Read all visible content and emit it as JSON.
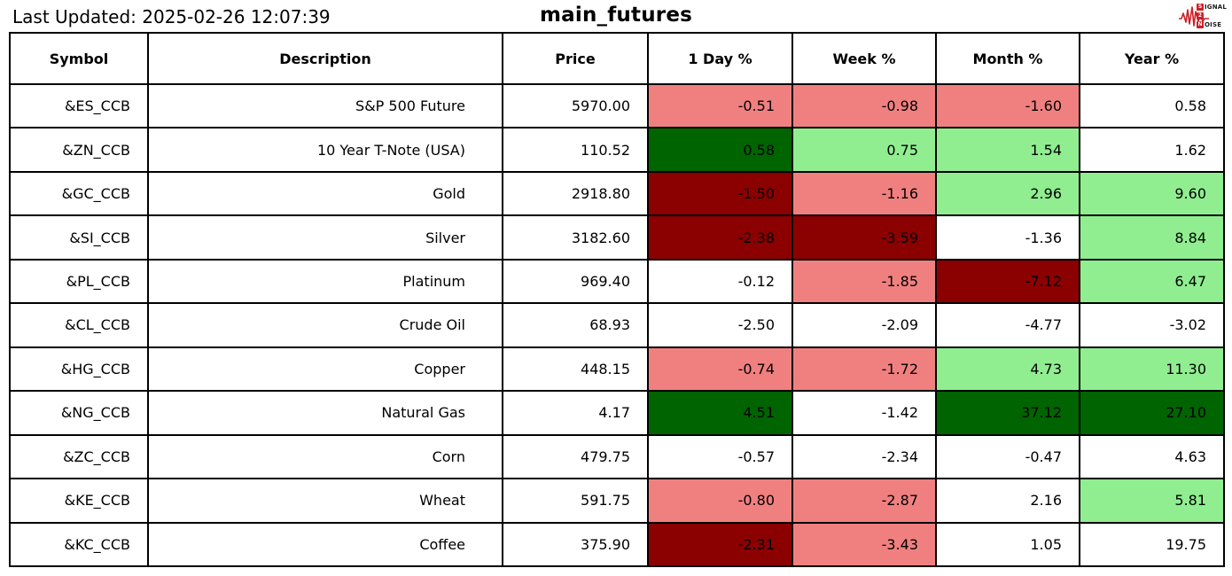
{
  "page": {
    "last_updated": "Last Updated: 2025-02-26 12:07:39"
  },
  "logo": {
    "name": "signal-2-noise",
    "line1_boxed": "S",
    "line1_rest": "IGNAL",
    "line2_boxed": "2",
    "line3_boxed": "N",
    "line3_rest": "OISE"
  },
  "colors": {
    "light_red": "#F08080",
    "dark_red": "#8B0000",
    "light_green": "#90EE90",
    "dark_green": "#006400",
    "white": "#FFFFFF",
    "border": "#000000",
    "logo_red": "#CB2026"
  },
  "chart_data": {
    "type": "table",
    "title": "main_futures",
    "columns": [
      "Symbol",
      "Description",
      "Price",
      "1 Day %",
      "Week %",
      "Month %",
      "Year %"
    ],
    "rows": [
      {
        "symbol": "&ES_CCB",
        "description": "S&P 500 Future",
        "price": "5970.00",
        "pct": [
          "-0.51",
          "-0.98",
          "-1.60",
          "0.58"
        ],
        "pct_colors": [
          "light_red",
          "light_red",
          "light_red",
          "white"
        ]
      },
      {
        "symbol": "&ZN_CCB",
        "description": "10 Year T-Note (USA)",
        "price": "110.52",
        "pct": [
          "0.58",
          "0.75",
          "1.54",
          "1.62"
        ],
        "pct_colors": [
          "dark_green",
          "light_green",
          "light_green",
          "white"
        ]
      },
      {
        "symbol": "&GC_CCB",
        "description": "Gold",
        "price": "2918.80",
        "pct": [
          "-1.50",
          "-1.16",
          "2.96",
          "9.60"
        ],
        "pct_colors": [
          "dark_red",
          "light_red",
          "light_green",
          "light_green"
        ]
      },
      {
        "symbol": "&SI_CCB",
        "description": "Silver",
        "price": "3182.60",
        "pct": [
          "-2.38",
          "-3.59",
          "-1.36",
          "8.84"
        ],
        "pct_colors": [
          "dark_red",
          "dark_red",
          "white",
          "light_green"
        ]
      },
      {
        "symbol": "&PL_CCB",
        "description": "Platinum",
        "price": "969.40",
        "pct": [
          "-0.12",
          "-1.85",
          "-7.12",
          "6.47"
        ],
        "pct_colors": [
          "white",
          "light_red",
          "dark_red",
          "light_green"
        ]
      },
      {
        "symbol": "&CL_CCB",
        "description": "Crude Oil",
        "price": "68.93",
        "pct": [
          "-2.50",
          "-2.09",
          "-4.77",
          "-3.02"
        ],
        "pct_colors": [
          "white",
          "white",
          "white",
          "white"
        ]
      },
      {
        "symbol": "&HG_CCB",
        "description": "Copper",
        "price": "448.15",
        "pct": [
          "-0.74",
          "-1.72",
          "4.73",
          "11.30"
        ],
        "pct_colors": [
          "light_red",
          "light_red",
          "light_green",
          "light_green"
        ]
      },
      {
        "symbol": "&NG_CCB",
        "description": "Natural Gas",
        "price": "4.17",
        "pct": [
          "4.51",
          "-1.42",
          "37.12",
          "27.10"
        ],
        "pct_colors": [
          "dark_green",
          "white",
          "dark_green",
          "dark_green"
        ]
      },
      {
        "symbol": "&ZC_CCB",
        "description": "Corn",
        "price": "479.75",
        "pct": [
          "-0.57",
          "-2.34",
          "-0.47",
          "4.63"
        ],
        "pct_colors": [
          "white",
          "white",
          "white",
          "white"
        ]
      },
      {
        "symbol": "&KE_CCB",
        "description": "Wheat",
        "price": "591.75",
        "pct": [
          "-0.80",
          "-2.87",
          "2.16",
          "5.81"
        ],
        "pct_colors": [
          "light_red",
          "light_red",
          "white",
          "light_green"
        ]
      },
      {
        "symbol": "&KC_CCB",
        "description": "Coffee",
        "price": "375.90",
        "pct": [
          "-2.31",
          "-3.43",
          "1.05",
          "19.75"
        ],
        "pct_colors": [
          "dark_red",
          "light_red",
          "white",
          "white"
        ]
      }
    ]
  }
}
